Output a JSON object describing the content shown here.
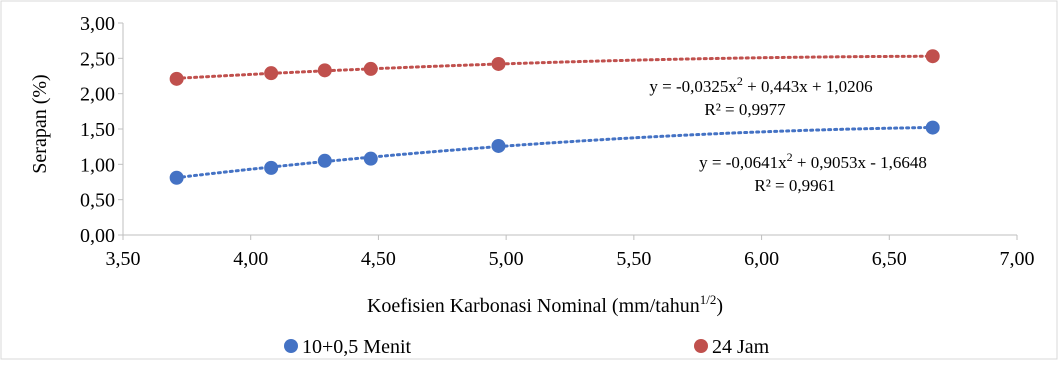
{
  "chart_data": {
    "type": "scatter",
    "xlabel": "Koefisien Karbonasi Nominal (mm/tahun",
    "xlabel_superscript": "1/2",
    "xlabel_suffix": ")",
    "ylabel": "Serapan (%)",
    "xlim": [
      3.5,
      7.0
    ],
    "ylim": [
      0.0,
      3.0
    ],
    "x_ticks": [
      "3,50",
      "4,00",
      "4,50",
      "5,00",
      "5,50",
      "6,00",
      "6,50",
      "7,00"
    ],
    "y_ticks": [
      "0,00",
      "0,50",
      "1,00",
      "1,50",
      "2,00",
      "2,50",
      "3,00"
    ],
    "grid": "none",
    "legend_position": "bottom",
    "series": [
      {
        "name": "10+0,5 Menit",
        "color": "#4472C4",
        "x": [
          3.71,
          4.08,
          4.29,
          4.47,
          4.97,
          6.67
        ],
        "y": [
          0.81,
          0.95,
          1.05,
          1.08,
          1.26,
          1.52
        ],
        "trendline": {
          "type": "polynomial-2",
          "coefficients": [
            -0.0641,
            0.9053,
            -1.6648
          ],
          "equation_prefix": "y = -0,0641x",
          "equation_suffix": " + 0,9053x - 1,6648",
          "r2": "R² = 0,9961"
        }
      },
      {
        "name": "24 Jam",
        "color": "#C0504D",
        "x": [
          3.71,
          4.08,
          4.29,
          4.47,
          4.97,
          6.67
        ],
        "y": [
          2.21,
          2.29,
          2.33,
          2.35,
          2.42,
          2.53
        ],
        "trendline": {
          "type": "polynomial-2",
          "coefficients": [
            -0.0325,
            0.443,
            1.0206
          ],
          "equation_prefix": "y = -0,0325x",
          "equation_suffix": " + 0,443x + 1,0206",
          "r2": "R² = 0,9977"
        }
      }
    ]
  }
}
